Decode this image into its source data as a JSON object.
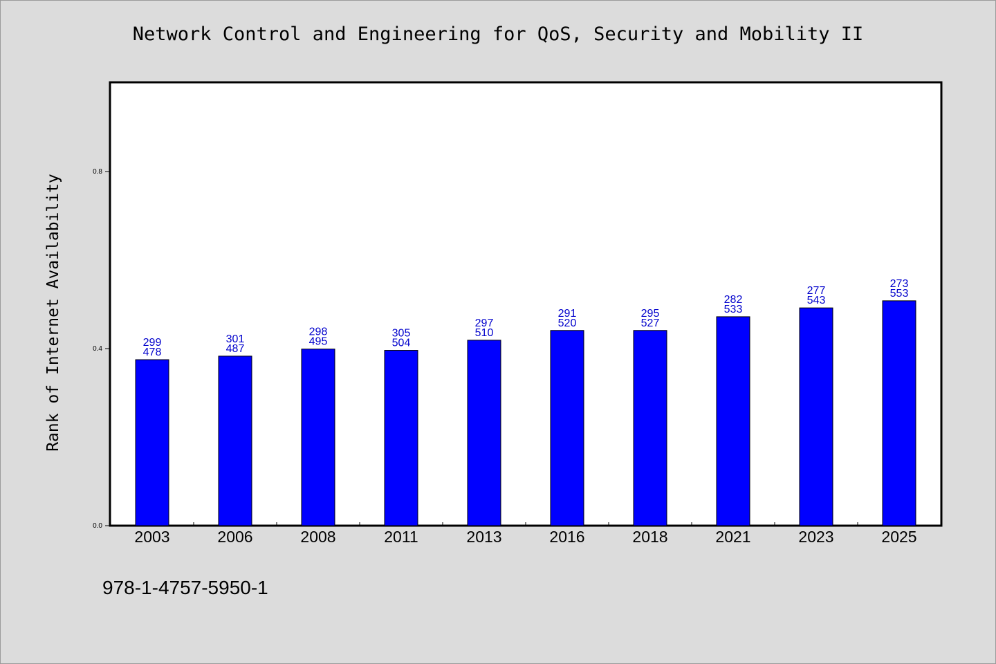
{
  "chart_data": {
    "type": "bar",
    "title": "Network Control and Engineering for QoS, Security and Mobility II",
    "ylabel": "Rank of Internet Availability",
    "xlabel": "",
    "categories": [
      "2003",
      "2006",
      "2008",
      "2011",
      "2013",
      "2016",
      "2018",
      "2021",
      "2023",
      "2025"
    ],
    "values": [
      0.375,
      0.383,
      0.399,
      0.396,
      0.419,
      0.441,
      0.441,
      0.472,
      0.492,
      0.508
    ],
    "label_top": [
      "299",
      "301",
      "298",
      "305",
      "297",
      "291",
      "295",
      "282",
      "277",
      "273"
    ],
    "label_bottom": [
      "478",
      "487",
      "495",
      "504",
      "510",
      "520",
      "527",
      "533",
      "543",
      "553"
    ],
    "ylim": [
      0,
      1.0
    ],
    "yticks": [
      0.0,
      0.4,
      0.8
    ],
    "ytick_labels": [
      "0.0",
      "0.4",
      "0.8"
    ],
    "bar_color": "#0000ff",
    "label_color": "#0000cc",
    "grid": false,
    "legend": "none"
  },
  "footer": {
    "isbn": "978-1-4757-5950-1"
  }
}
